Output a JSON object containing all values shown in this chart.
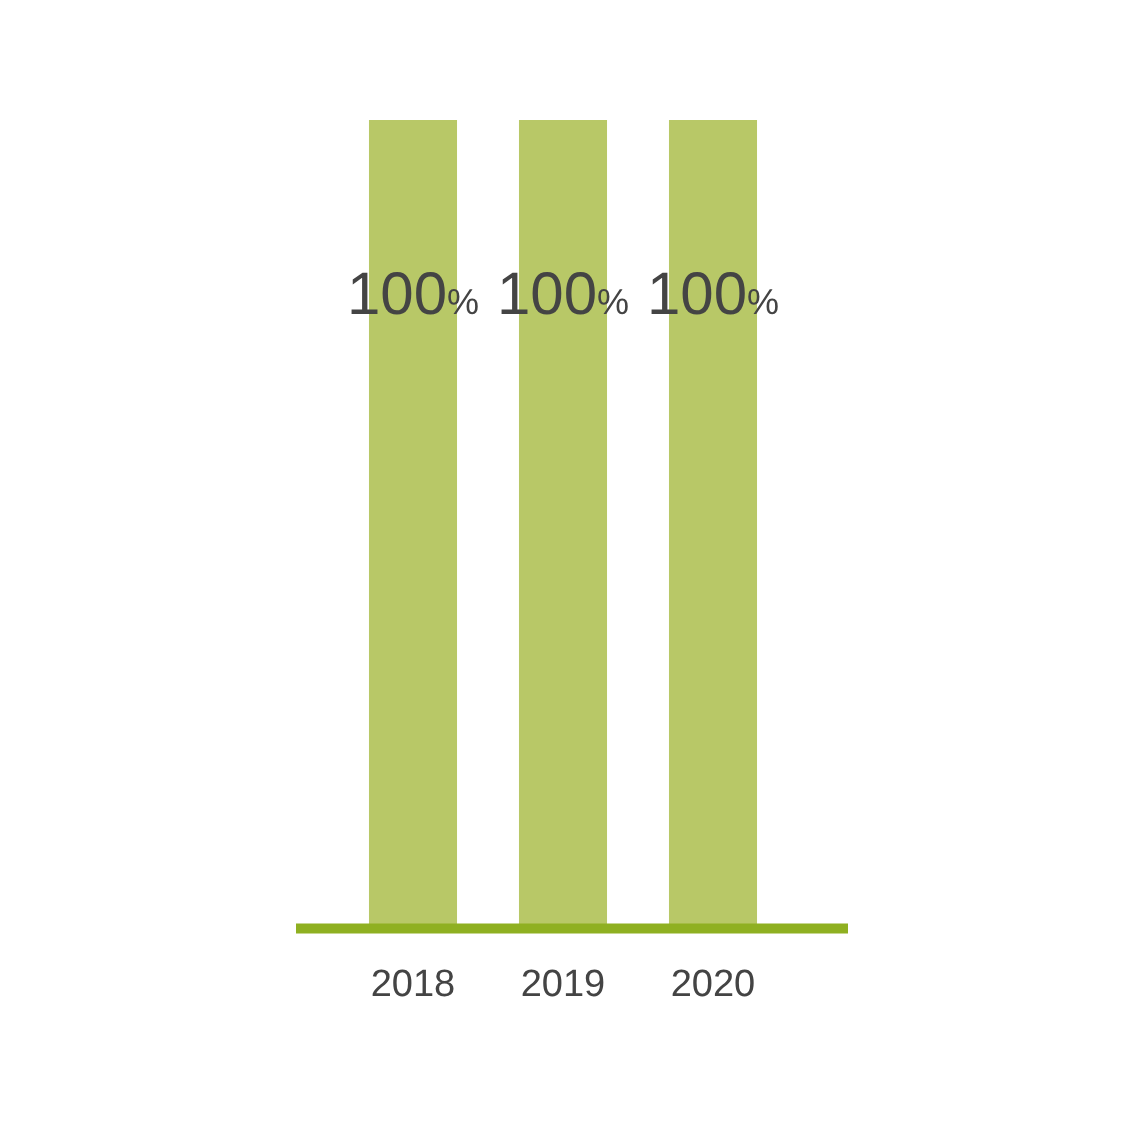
{
  "chart_data": {
    "type": "bar",
    "categories": [
      "2018",
      "2019",
      "2020"
    ],
    "values": [
      100,
      100,
      100
    ],
    "color": "#b8c867",
    "value_labels": [
      "100%",
      "100%",
      "100%"
    ],
    "grid": false,
    "legend": false
  }
}
